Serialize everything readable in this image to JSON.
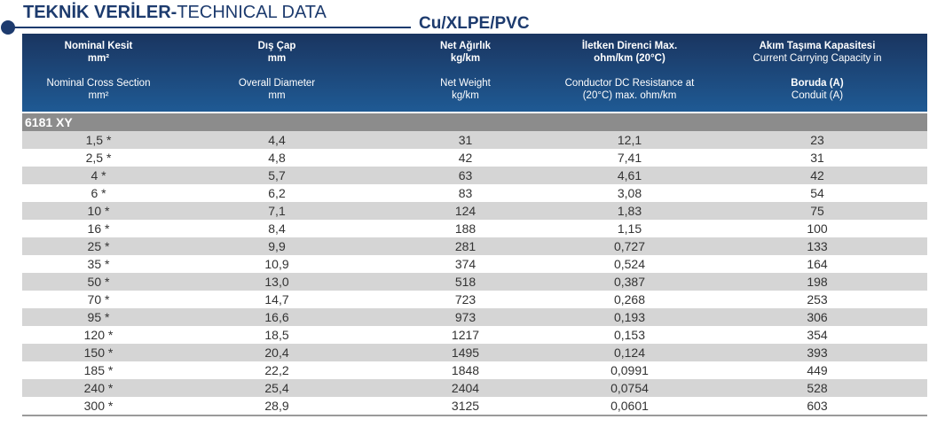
{
  "title": {
    "bold": "TEKNİK VERİLER-",
    "normal": "TECHNICAL DATA"
  },
  "subtitle": "Cu/XLPE/PVC",
  "headers": [
    {
      "tr": [
        "Nominal Kesit",
        "mm²"
      ],
      "en": [
        "Nominal Cross Section",
        "mm²"
      ]
    },
    {
      "tr": [
        "Dış Çap",
        "mm"
      ],
      "en": [
        "Overall Diameter",
        "mm"
      ]
    },
    {
      "tr": [
        "Net Ağırlık",
        "kg/km"
      ],
      "en": [
        "Net Weight",
        "kg/km"
      ]
    },
    {
      "tr": [
        "İletken Direnci Max.",
        "ohm/km (20°C)"
      ],
      "en": [
        "Conductor DC Resistance at",
        "(20°C) max. ohm/km"
      ]
    },
    {
      "tr": [
        "Akım Taşıma Kapasitesi",
        "Current Carrying Capacity in"
      ],
      "en": [
        "Boruda (A)",
        "Conduit (A)"
      ]
    }
  ],
  "section_label": "6181 XY",
  "rows": [
    [
      "1,5 *",
      "4,4",
      "31",
      "12,1",
      "23"
    ],
    [
      "2,5 *",
      "4,8",
      "42",
      "7,41",
      "31"
    ],
    [
      "4 *",
      "5,7",
      "63",
      "4,61",
      "42"
    ],
    [
      "6 *",
      "6,2",
      "83",
      "3,08",
      "54"
    ],
    [
      "10 *",
      "7,1",
      "124",
      "1,83",
      "75"
    ],
    [
      "16 *",
      "8,4",
      "188",
      "1,15",
      "100"
    ],
    [
      "25 *",
      "9,9",
      "281",
      "0,727",
      "133"
    ],
    [
      "35 *",
      "10,9",
      "374",
      "0,524",
      "164"
    ],
    [
      "50 *",
      "13,0",
      "518",
      "0,387",
      "198"
    ],
    [
      "70 *",
      "14,7",
      "723",
      "0,268",
      "253"
    ],
    [
      "95 *",
      "16,6",
      "973",
      "0,193",
      "306"
    ],
    [
      "120 *",
      "18,5",
      "1217",
      "0,153",
      "354"
    ],
    [
      "150 *",
      "20,4",
      "1495",
      "0,124",
      "393"
    ],
    [
      "185 *",
      "22,2",
      "1848",
      "0,0991",
      "449"
    ],
    [
      "240 *",
      "25,4",
      "2404",
      "0,0754",
      "528"
    ],
    [
      "300 *",
      "28,9",
      "3125",
      "0,0601",
      "603"
    ]
  ],
  "colors": {
    "title": "#1d3b6e",
    "header_top": "#1a3560",
    "header_bottom": "#1f5a94",
    "section": "#8c8c8c",
    "row_odd": "#d5d5d5",
    "row_even": "#ffffff"
  }
}
